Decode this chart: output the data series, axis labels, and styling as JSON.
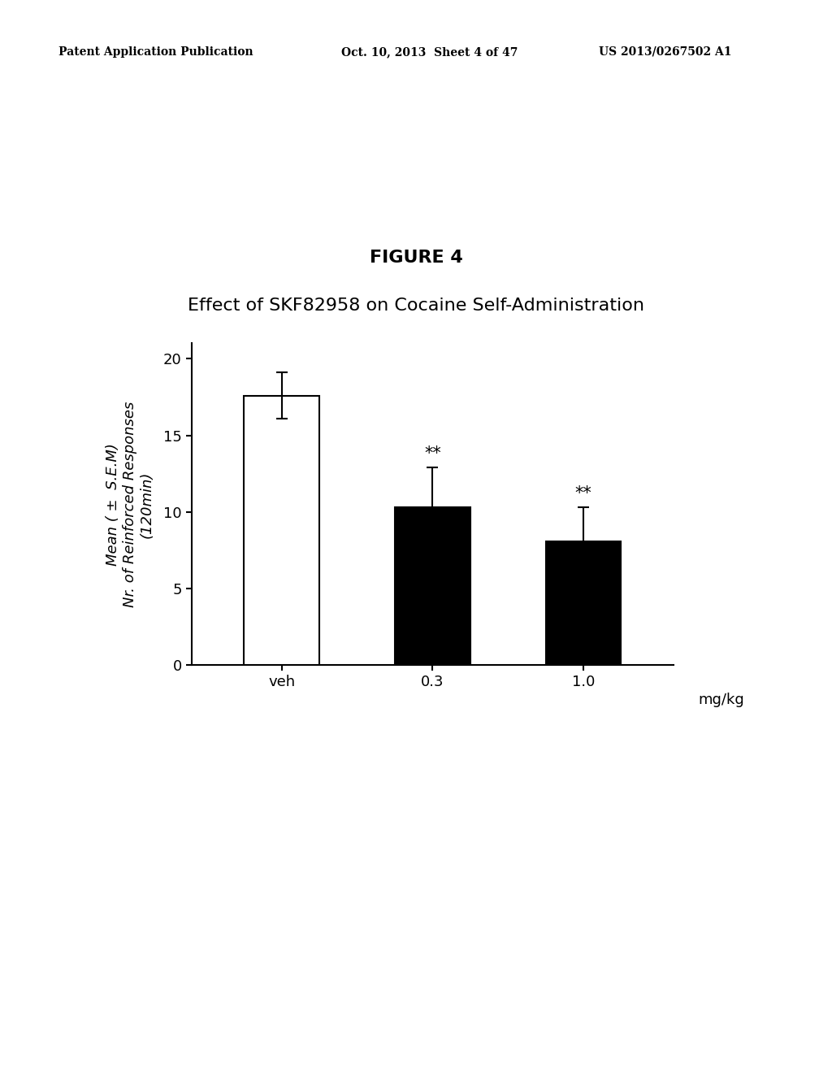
{
  "figure_title": "FIGURE 4",
  "chart_title": "Effect of SKF82958 on Cocaine Self-Administration",
  "header_left": "Patent Application Publication",
  "header_mid": "Oct. 10, 2013  Sheet 4 of 47",
  "header_right": "US 2013/0267502 A1",
  "categories": [
    "veh",
    "0.3",
    "1.0"
  ],
  "xlabel_suffix": "mg/kg",
  "values": [
    17.6,
    10.3,
    8.1
  ],
  "errors": [
    1.5,
    2.6,
    2.2
  ],
  "bar_colors": [
    "#ffffff",
    "#000000",
    "#000000"
  ],
  "bar_edgecolors": [
    "#000000",
    "#000000",
    "#000000"
  ],
  "significance": [
    "",
    "**",
    "**"
  ],
  "ylabel_line1": "Mean ( ±  S.E.M)",
  "ylabel_line2": "Nr. of Reinforced Responses",
  "ylabel_line3": "(120min)",
  "ylim": [
    0,
    21
  ],
  "yticks": [
    0,
    5,
    10,
    15,
    20
  ],
  "background_color": "#ffffff",
  "bar_width": 0.5,
  "figure_title_fontsize": 16,
  "chart_title_fontsize": 16,
  "axis_label_fontsize": 13,
  "tick_fontsize": 13,
  "sig_fontsize": 15,
  "header_fontsize": 10
}
